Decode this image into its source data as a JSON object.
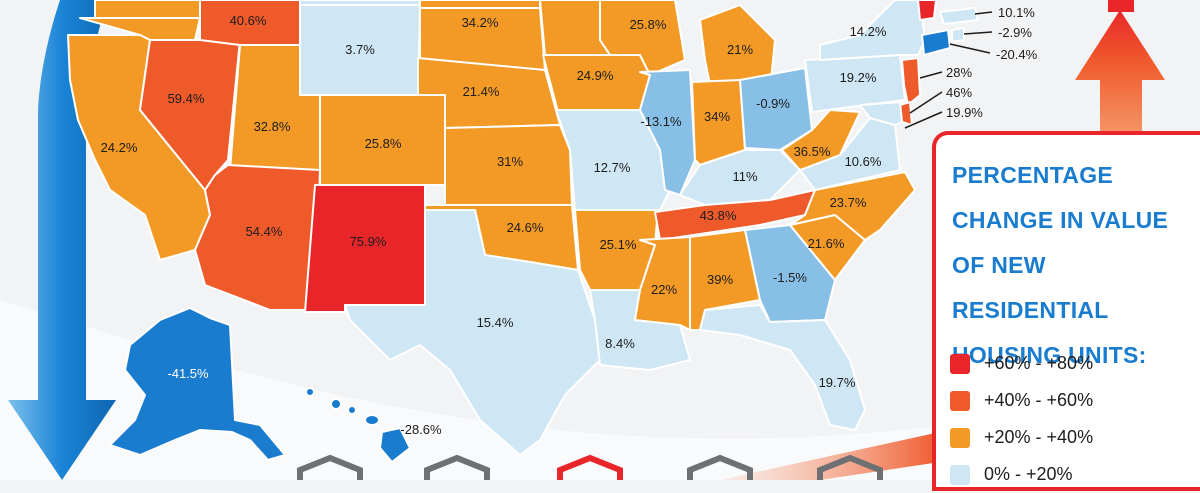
{
  "legend": {
    "title_lines": [
      "PERCENTAGE",
      "CHANGE IN VALUE",
      "OF NEW RESIDENTIAL",
      "HOUSING UNITS:"
    ],
    "items": [
      {
        "label": "+60%  -  +80%",
        "color": "#e8262a"
      },
      {
        "label": "+40%  -  +60%",
        "color": "#ee5a2a"
      },
      {
        "label": "+20%  -  +40%",
        "color": "#f39a26"
      },
      {
        "label": "0%  -  +20%",
        "color": "#cfe6f5"
      }
    ]
  },
  "category_colors": {
    "very_high": "#e8262a",
    "high": "#ee5a2a",
    "medium": "#f39a26",
    "low": "#cfe6f5",
    "slight_negative": "#88bfe6",
    "strong_negative": "#1a7ccf"
  },
  "states": {
    "WA": "",
    "OR": "",
    "CA": "24.2%",
    "NV": "59.4%",
    "ID": "40.6%",
    "UT": "32.8%",
    "AZ": "54.4%",
    "MT": "",
    "WY": "3.7%",
    "CO": "25.8%",
    "NM": "75.9%",
    "ND": "",
    "SD": "34.2%",
    "NE": "21.4%",
    "KS": "31%",
    "OK": "24.6%",
    "TX": "15.4%",
    "MN": "",
    "IA": "24.9%",
    "MO": "12.7%",
    "AR": "25.1%",
    "LA": "8.4%",
    "WI": "25.8%",
    "IL": "-13.1%",
    "MI": "21%",
    "IN": "34%",
    "OH": "-0.9%",
    "KY": "11%",
    "TN": "43.8%",
    "MS": "22%",
    "AL": "39%",
    "GA": "-1.5%",
    "FL": "19.7%",
    "SC": "21.6%",
    "NC": "23.7%",
    "VA": "10.6%",
    "WV": "36.5%",
    "PA": "19.2%",
    "NY": "14.2%",
    "AK": "-41.5%",
    "HI": "-28.6%"
  },
  "northeast_labels": {
    "ma": "10.1%",
    "ri": "-2.9%",
    "ct": "-20.4%",
    "nj": "28%",
    "de": "46%",
    "md": "19.9%"
  }
}
